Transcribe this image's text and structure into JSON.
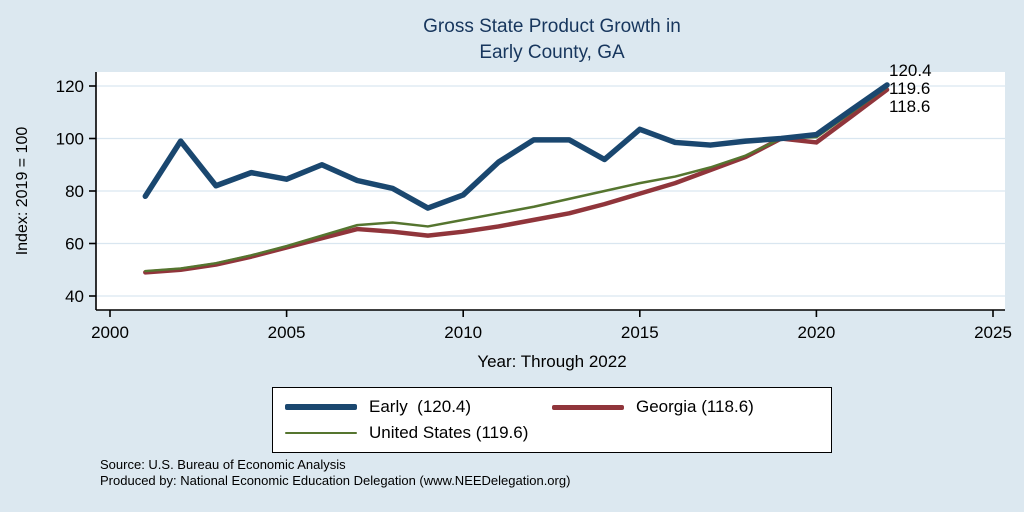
{
  "title": {
    "line1": "Gross State Product Growth in",
    "line2": "Early County, GA"
  },
  "axes": {
    "y_label": "Index: 2019 = 100",
    "x_label": "Year: Through 2022"
  },
  "end_labels": [
    "120.4",
    "119.6",
    "118.6"
  ],
  "legend": {
    "items": [
      {
        "label": "Early  (120.4)",
        "color": "#1a476f"
      },
      {
        "label": "Georgia (118.6)",
        "color": "#90353b"
      },
      {
        "label": "United States (119.6)",
        "color": "#55752f"
      }
    ]
  },
  "source": {
    "line1": "Source: U.S. Bureau of Economic Analysis",
    "line2": "Produced by: National Economic Education Delegation (www.NEEDelegation.org)"
  },
  "chart_data": {
    "type": "line",
    "title": "Gross State Product Growth in Early County, GA",
    "xlabel": "Year: Through 2022",
    "ylabel": "Index: 2019 = 100",
    "xlim": [
      2000,
      2025
    ],
    "ylim": [
      40,
      120
    ],
    "x_ticks": [
      2000,
      2005,
      2010,
      2015,
      2020,
      2025
    ],
    "y_ticks": [
      40,
      60,
      80,
      100,
      120
    ],
    "grid": true,
    "legend_position": "bottom",
    "x": [
      2001,
      2002,
      2003,
      2004,
      2005,
      2006,
      2007,
      2008,
      2009,
      2010,
      2011,
      2012,
      2013,
      2014,
      2015,
      2016,
      2017,
      2018,
      2019,
      2020,
      2021,
      2022
    ],
    "series": [
      {
        "name": "Early",
        "color": "#1a476f",
        "width": 5.5,
        "values": [
          78,
          99,
          82,
          87,
          84.5,
          90,
          84,
          81,
          73.5,
          78.5,
          91,
          99.5,
          99.5,
          92,
          103.5,
          98.5,
          97.5,
          99,
          100,
          101.5,
          111,
          120.4
        ]
      },
      {
        "name": "United States",
        "color": "#55752f",
        "width": 2.5,
        "values": [
          49.5,
          50.5,
          52.5,
          55.5,
          59,
          63,
          67,
          68,
          66.5,
          69,
          71.5,
          74,
          77,
          80,
          83,
          85.5,
          89,
          93.5,
          100,
          100.5,
          110,
          119.6
        ]
      },
      {
        "name": "Georgia",
        "color": "#90353b",
        "width": 4.5,
        "values": [
          49,
          50,
          52,
          55,
          58.5,
          62,
          65.5,
          64.5,
          63,
          64.5,
          66.5,
          69,
          71.5,
          75,
          79,
          83,
          88,
          93,
          100,
          98.5,
          108.5,
          118.6
        ]
      }
    ]
  }
}
